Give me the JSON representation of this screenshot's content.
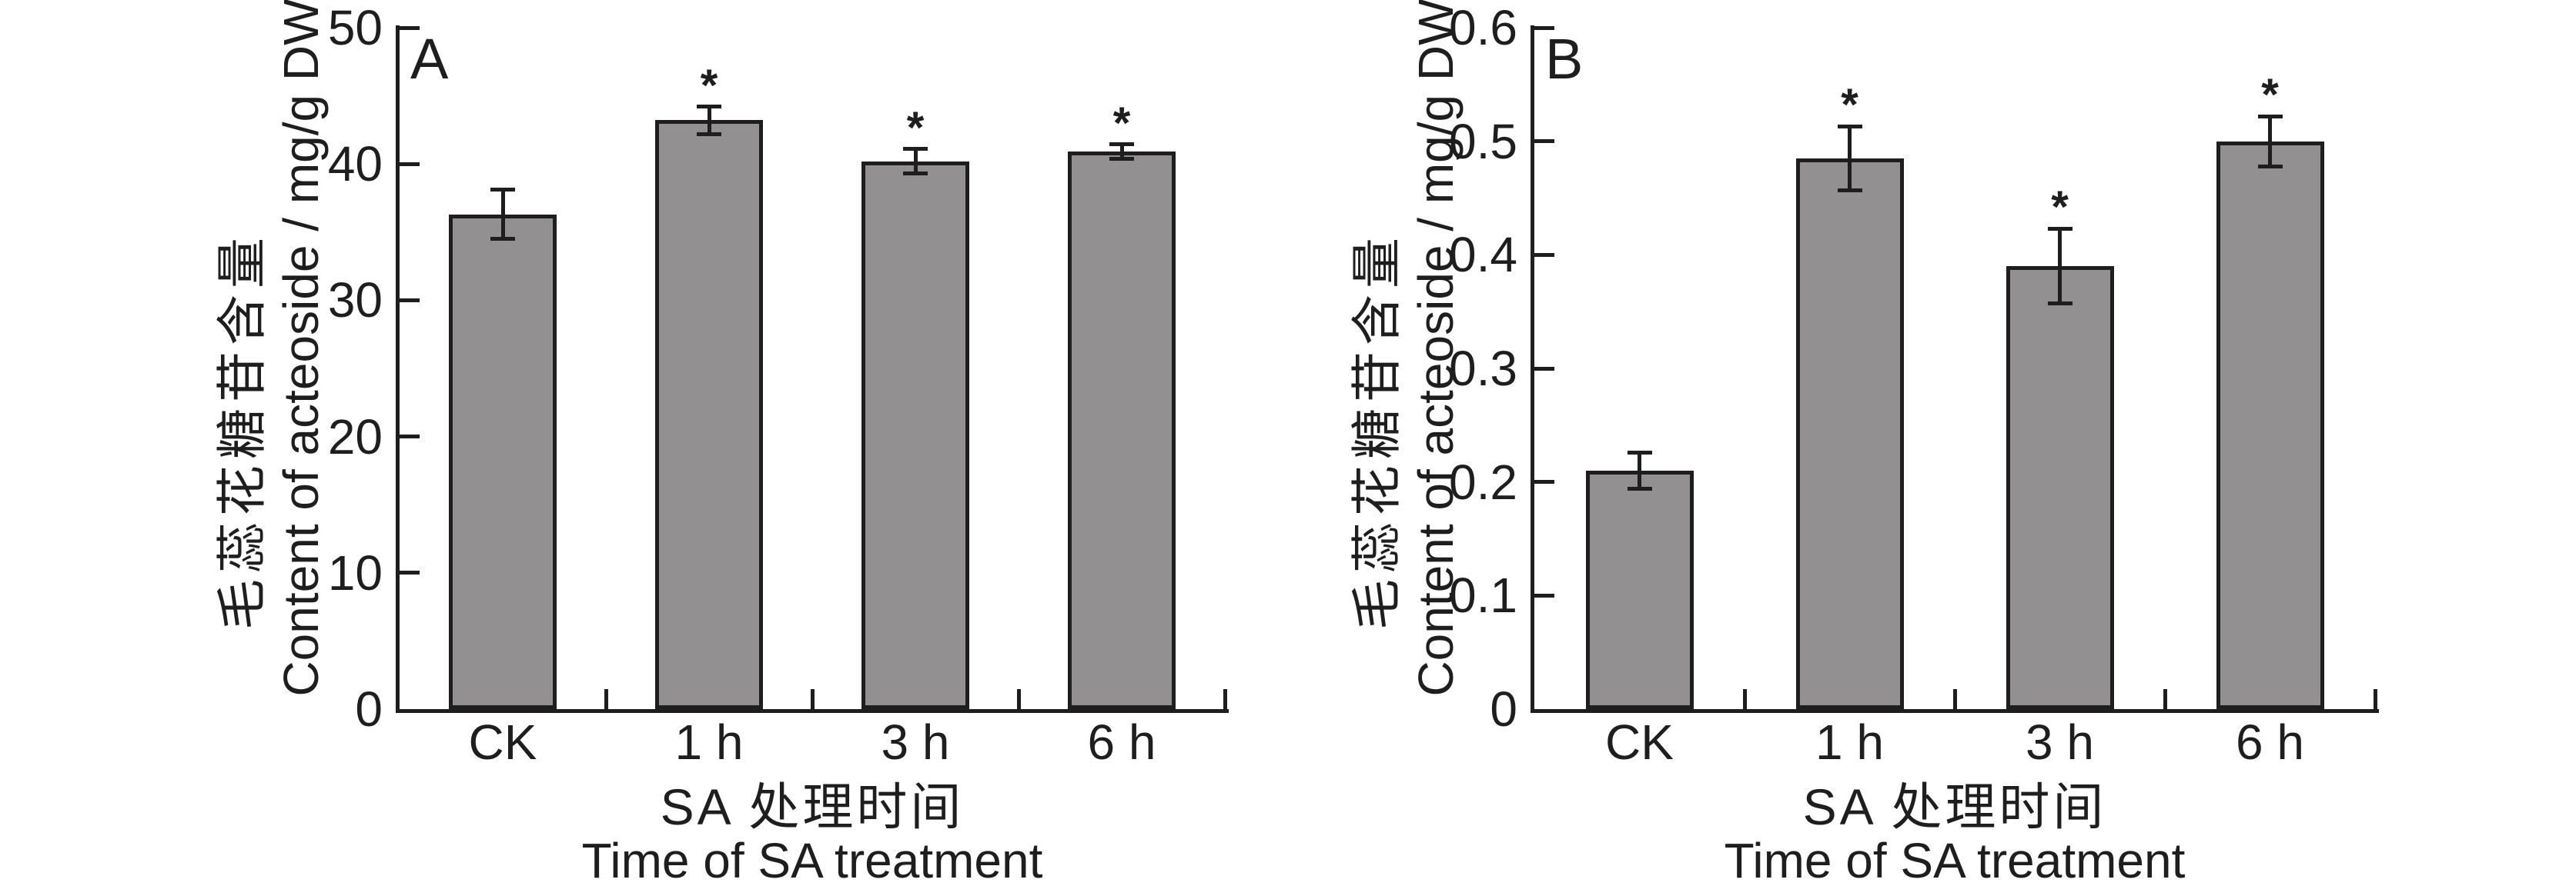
{
  "figure": {
    "background": "#ffffff",
    "bar_color": "#929090",
    "line_color": "#1e1e1e"
  },
  "chart_data": [
    {
      "type": "bar",
      "panel_label": "A",
      "categories": [
        "CK",
        "1 h",
        "3 h",
        "6 h"
      ],
      "values": [
        36.3,
        43.2,
        40.2,
        40.9
      ],
      "errors": [
        1.8,
        1.0,
        0.9,
        0.55
      ],
      "significance": [
        "",
        "*",
        "*",
        "*"
      ],
      "ylim": [
        0,
        50
      ],
      "yticks": [
        0,
        10,
        20,
        30,
        40,
        50
      ],
      "ytick_labels": [
        "0",
        "10",
        "20",
        "30",
        "40",
        "50"
      ],
      "ylabel_zh": "毛蕊花糖苷含量",
      "ylabel_en": "Content of acteoside / mg/g DW",
      "xlabel_zh": "SA 处理时间",
      "xlabel_en": "Time of SA treatment",
      "grid": false,
      "legend_position": "none"
    },
    {
      "type": "bar",
      "panel_label": "B",
      "categories": [
        "CK",
        "1 h",
        "3 h",
        "6 h"
      ],
      "values": [
        0.21,
        0.485,
        0.39,
        0.5
      ],
      "errors": [
        0.016,
        0.028,
        0.033,
        0.022
      ],
      "significance": [
        "",
        "*",
        "*",
        "*"
      ],
      "ylim": [
        0,
        0.6
      ],
      "yticks": [
        0,
        0.1,
        0.2,
        0.3,
        0.4,
        0.5,
        0.6
      ],
      "ytick_labels": [
        "0",
        "0.1",
        "0.2",
        "0.3",
        "0.4",
        "0.5",
        "0.6"
      ],
      "ylabel_zh": "毛蕊花糖苷含量",
      "ylabel_en": "Content of acteoside / mg/g DW",
      "xlabel_zh": "SA 处理时间",
      "xlabel_en": "Time of SA treatment",
      "grid": false,
      "legend_position": "none"
    }
  ]
}
